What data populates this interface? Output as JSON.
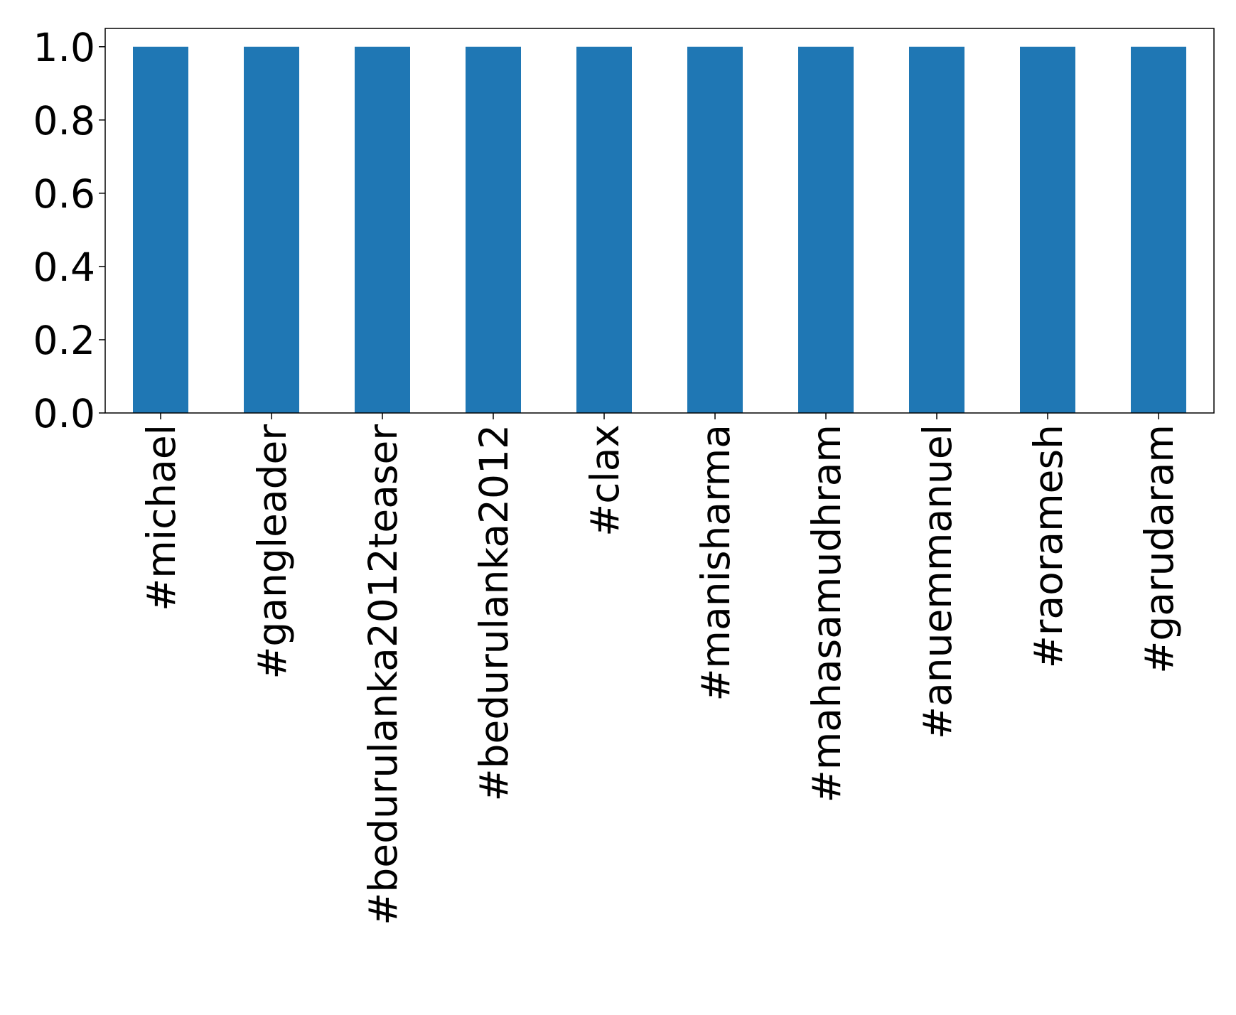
{
  "chart_data": {
    "type": "bar",
    "categories": [
      "#michael",
      "#gangleader",
      "#bedurulanka2012teaser",
      "#bedurulanka2012",
      "#clax",
      "#manisharma",
      "#mahasamudhram",
      "#anuemmanuel",
      "#raoramesh",
      "#garudaram"
    ],
    "values": [
      1,
      1,
      1,
      1,
      1,
      1,
      1,
      1,
      1,
      1
    ],
    "color": "#1f77b4",
    "ylim": [
      0,
      1.05
    ],
    "yticks": [
      {
        "value": 0,
        "label": "0.0"
      },
      0.2,
      0.4,
      0.6,
      0.8,
      {
        "value": 1,
        "label": "1.0"
      }
    ],
    "grid": false
  }
}
